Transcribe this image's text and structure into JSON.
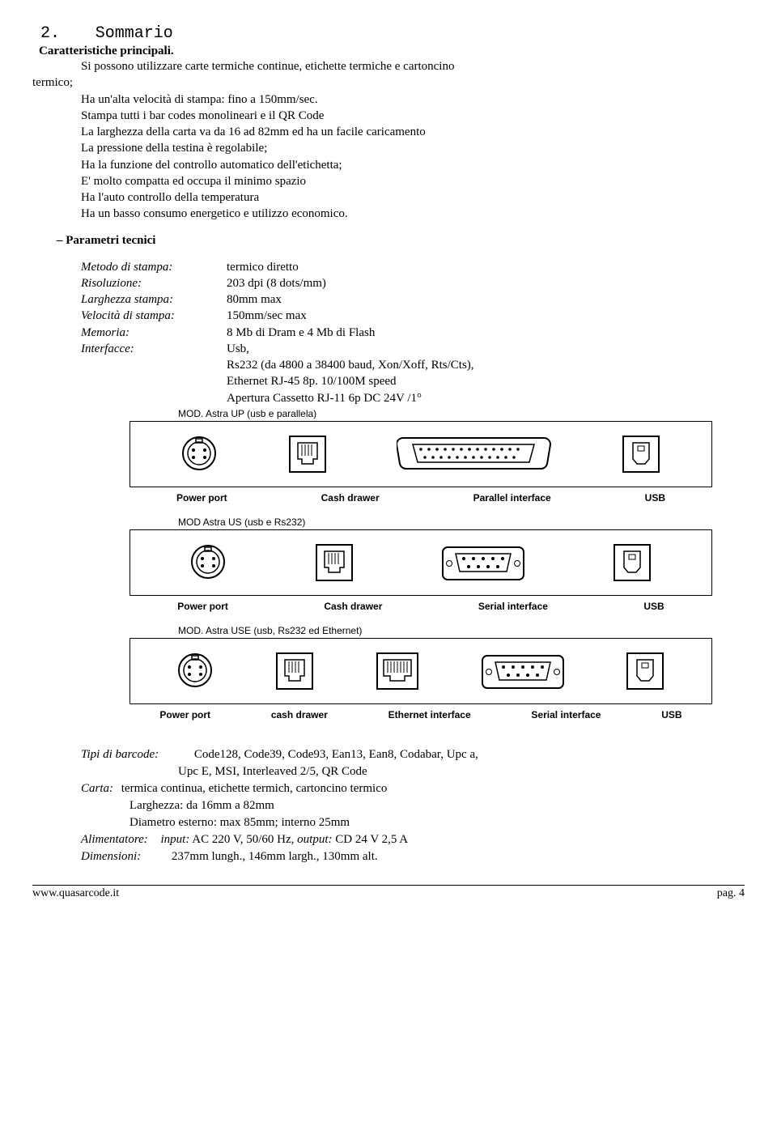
{
  "section": {
    "number": "2.",
    "title": "Sommario"
  },
  "sub1": "Caratteristiche principali.",
  "intro": [
    "Si possono utilizzare carte termiche continue, etichette termiche e cartoncino",
    "termico;",
    "Ha un'alta velocità di stampa: fino a 150mm/sec.",
    "Stampa tutti i bar codes monolineari e il QR Code",
    "La larghezza della carta va da 16 ad 82mm ed ha un facile caricamento",
    "La pressione della testina è regolabile;",
    "Ha la funzione del controllo automatico dell'etichetta;",
    "E' molto compatta ed occupa il minimo spazio",
    "Ha l'auto controllo della temperatura",
    "Ha un basso consumo energetico e utilizzo economico."
  ],
  "sub2": "– Parametri tecnici",
  "params": [
    {
      "label": "Metodo di stampa:",
      "value": "termico diretto"
    },
    {
      "label": "Risoluzione:",
      "value": "203 dpi (8 dots/mm)"
    },
    {
      "label": "Larghezza stampa:",
      "value": "80mm max"
    },
    {
      "label": "Velocità di stampa:",
      "value": " 150mm/sec max"
    },
    {
      "label": "Memoria:",
      "value": "8 Mb di Dram e 4 Mb di Flash"
    },
    {
      "label": "Interfacce:",
      "value": "Usb,"
    }
  ],
  "params_cont": [
    "Rs232 (da 4800 a 38400 baud, Xon/Xoff, Rts/Cts),",
    "Ethernet RJ-45 8p. 10/100M speed",
    "Apertura Cassetto  RJ-11 6p DC 24V /1°"
  ],
  "models": [
    {
      "caption": "MOD. Astra UP (usb e parallela)",
      "ports": [
        "din",
        "rj11",
        "db25",
        "usb-b"
      ],
      "labels": [
        "Power port",
        "Cash drawer",
        "Parallel interface",
        "USB"
      ]
    },
    {
      "caption": "MOD Astra US (usb e Rs232)",
      "ports": [
        "din",
        "rj11",
        "db9",
        "usb-b"
      ],
      "labels": [
        "Power port",
        "Cash drawer",
        "Serial interface",
        "USB"
      ]
    },
    {
      "caption": "MOD. Astra USE (usb, Rs232 ed Ethernet)",
      "ports": [
        "din",
        "rj11",
        "rj45",
        "db9",
        "usb-b"
      ],
      "labels": [
        "Power port",
        "cash drawer",
        "Ethernet interface",
        "Serial interface",
        "USB"
      ]
    }
  ],
  "bottom": {
    "barcode_label": "Tipi di barcode:",
    "barcode_value": "Code128, Code39, Code93, Ean13, Ean8, Codabar, Upc a,",
    "barcode_value2": "Upc E, MSI, Interleaved 2/5, QR Code",
    "carta_label": "Carta:",
    "carta_value": "termica continua, etichette termich, cartoncino termico",
    "carta_l2": "Larghezza: da 16mm a 82mm",
    "carta_l3": "Diametro esterno: max 85mm; interno 25mm",
    "alim_label": "Alimentatore:",
    "alim_value_pre": "input:",
    "alim_value_in": " AC 220 V, 50/60 Hz, ",
    "alim_value_out_lbl": "output:",
    "alim_value_out": " CD 24 V 2,5 A",
    "dim_label": "Dimensioni:",
    "dim_value": "237mm lungh., 146mm largh., 130mm alt."
  },
  "footer": {
    "left": "www.quasarcode.it",
    "right": "pag.  4"
  }
}
